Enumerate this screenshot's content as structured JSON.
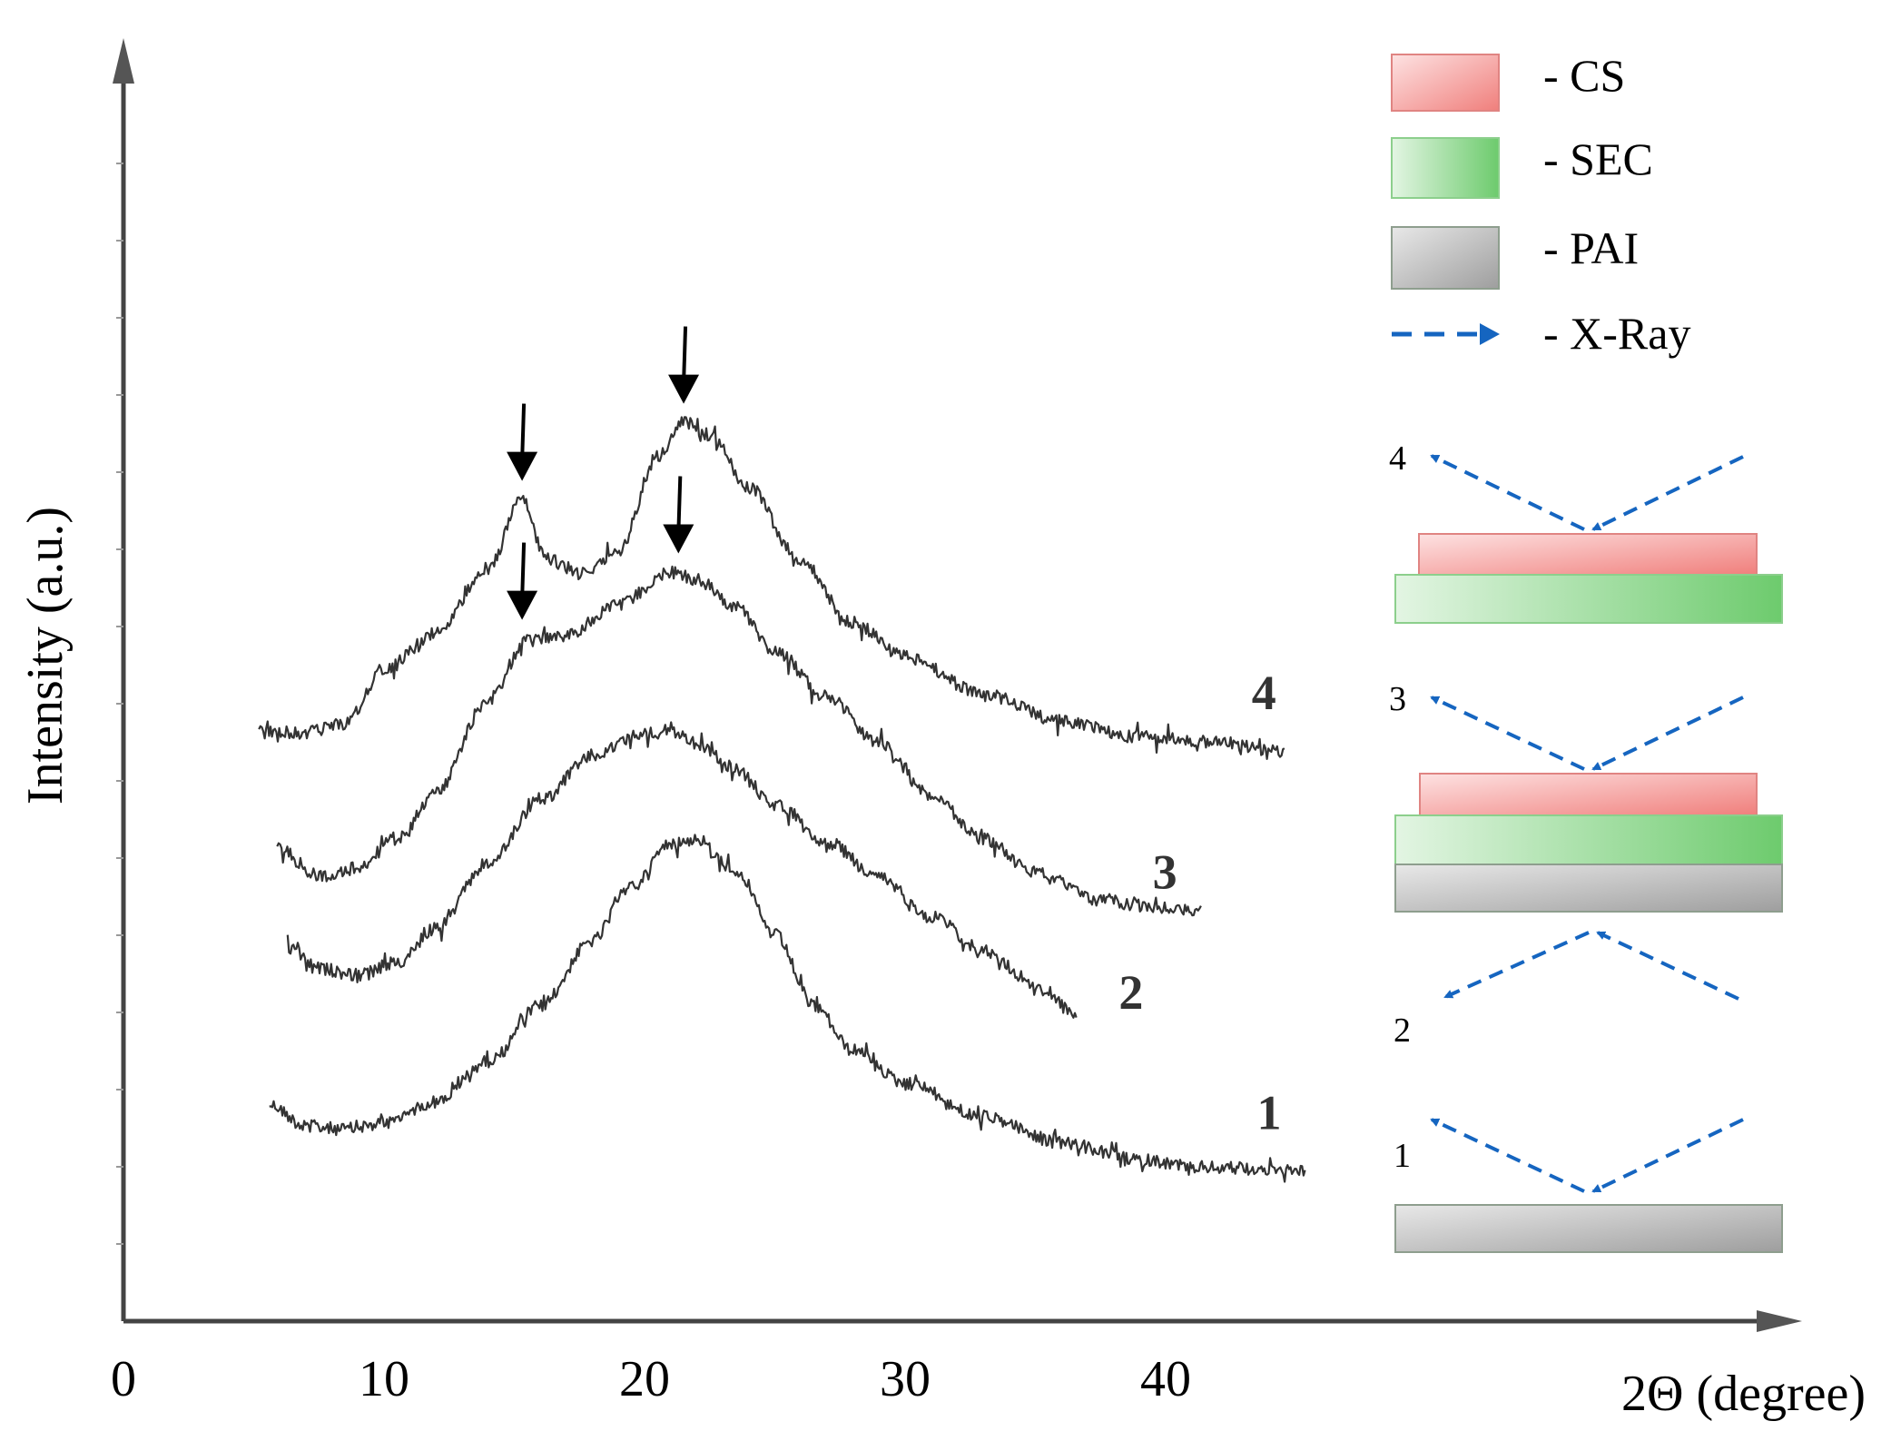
{
  "chart_data": {
    "type": "line",
    "title": "",
    "xlabel": "2Θ (degree)",
    "ylabel": "Intensity (a.u.)",
    "xlim": [
      0,
      63
    ],
    "x_ticks": [
      "0",
      "10",
      "20",
      "30",
      "40"
    ],
    "x_tick_values": [
      0,
      10,
      20,
      30,
      40
    ],
    "grid": false,
    "series": [
      {
        "name": "1",
        "x": [
          5.6,
          7,
          8.5,
          10,
          12,
          14,
          16,
          18,
          19.5,
          21,
          22,
          23.5,
          25,
          26.5,
          28,
          30,
          33,
          36,
          39,
          42,
          45.4
        ],
        "values": [
          0.58,
          0.44,
          0.42,
          0.46,
          0.6,
          0.86,
          1.22,
          1.64,
          2.0,
          2.27,
          2.3,
          2.1,
          1.68,
          1.22,
          0.93,
          0.72,
          0.5,
          0.33,
          0.22,
          0.17,
          0.15
        ]
      },
      {
        "name": "2",
        "x": [
          6.3,
          7.5,
          9,
          10.5,
          12,
          14,
          16,
          18,
          20,
          21,
          22,
          23.5,
          25,
          27,
          29,
          31,
          33,
          35,
          36.6
        ],
        "values": [
          1.6,
          1.46,
          1.42,
          1.5,
          1.72,
          2.15,
          2.55,
          2.84,
          2.98,
          3.0,
          2.92,
          2.75,
          2.52,
          2.28,
          2.05,
          1.8,
          1.58,
          1.36,
          1.16
        ]
      },
      {
        "name": "3",
        "x": [
          5.9,
          7.5,
          9,
          10.5,
          12,
          14,
          15.5,
          17,
          19,
          21,
          22,
          23.5,
          25,
          27,
          29,
          31,
          33,
          35,
          37.5,
          40,
          41.4
        ],
        "values": [
          2.25,
          2.06,
          2.12,
          2.3,
          2.6,
          3.2,
          3.58,
          3.62,
          3.82,
          4.03,
          3.98,
          3.8,
          3.52,
          3.22,
          2.92,
          2.58,
          2.3,
          2.08,
          1.9,
          1.85,
          1.84
        ]
      },
      {
        "name": "4",
        "x": [
          5.2,
          7,
          8.5,
          10,
          12,
          14,
          15.3,
          16.2,
          17.5,
          19,
          20.5,
          21.5,
          22.5,
          24,
          26,
          28,
          30,
          33,
          36,
          39,
          42,
          44.6
        ],
        "values": [
          2.99,
          2.99,
          3.05,
          3.4,
          3.63,
          4.05,
          4.5,
          4.12,
          4.02,
          4.16,
          4.78,
          5.0,
          4.92,
          4.58,
          4.08,
          3.7,
          3.48,
          3.24,
          3.06,
          2.96,
          2.93,
          2.86
        ]
      }
    ],
    "curve_labels": [
      {
        "text": "1",
        "x": 43.5,
        "y": 0.42
      },
      {
        "text": "2",
        "x": 38.2,
        "y": 1.2
      },
      {
        "text": "3",
        "x": 39.5,
        "y": 1.98
      },
      {
        "text": "4",
        "x": 43.3,
        "y": 3.14
      }
    ],
    "annotations": [
      {
        "type": "arrow-down",
        "series": "4",
        "x": 15.3,
        "y": 4.62
      },
      {
        "type": "arrow-down",
        "series": "4",
        "x": 21.5,
        "y": 5.12
      },
      {
        "type": "arrow-down",
        "series": "3",
        "x": 15.3,
        "y": 3.72
      },
      {
        "type": "arrow-down",
        "series": "3",
        "x": 21.3,
        "y": 4.15
      }
    ]
  },
  "legend": {
    "items": [
      {
        "label": "- CS",
        "swatch": "cs"
      },
      {
        "label": "- SEC",
        "swatch": "sec"
      },
      {
        "label": "- PAI",
        "swatch": "pai"
      },
      {
        "label": "- X-Ray",
        "swatch": "xray"
      }
    ]
  },
  "scheme": {
    "samples": [
      {
        "number": "4",
        "layers": [
          "cs",
          "sec"
        ],
        "xray": "top"
      },
      {
        "number": "3",
        "layers": [
          "cs",
          "sec",
          "pai"
        ],
        "xray": "top"
      },
      {
        "number": "2",
        "layers": [],
        "xray": "bottom"
      },
      {
        "number": "1",
        "layers": [
          "pai"
        ],
        "xray": "top"
      }
    ]
  },
  "colors": {
    "cs_light": "#fde2e2",
    "cs_dark": "#f07f7c",
    "cs_border": "#e08482",
    "sec_light": "#e3f5e3",
    "sec_dark": "#6dcb6d",
    "sec_border": "#8ccf8c",
    "pai_light": "#e8e8e8",
    "pai_dark": "#9e9e9e",
    "pai_border": "#8e9e8e",
    "xray": "#1565c0",
    "curve": "#333333",
    "axis": "#444444"
  }
}
